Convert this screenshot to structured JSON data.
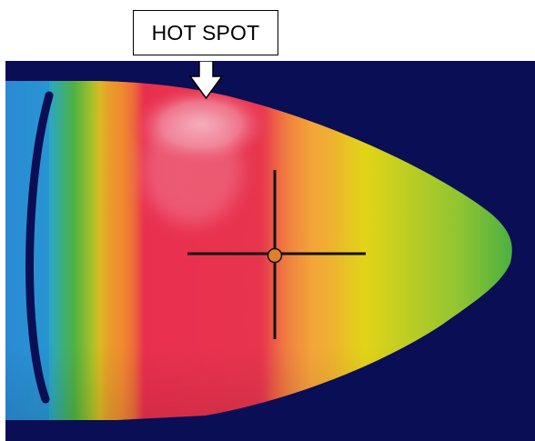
{
  "annotation": {
    "label": "HOT SPOT"
  },
  "thermal_image": {
    "background_color": "#0a0e55",
    "palette": {
      "hot": "#f3a6b6",
      "red": "#e92f4f",
      "orange": "#f4a53a",
      "yellow": "#e2d418",
      "green": "#4fb240",
      "cyan": "#27a6cf",
      "blue": "#2a8fd8"
    },
    "crosshair_color": "#111111",
    "crosshair_center_color": "#e07f2e"
  }
}
